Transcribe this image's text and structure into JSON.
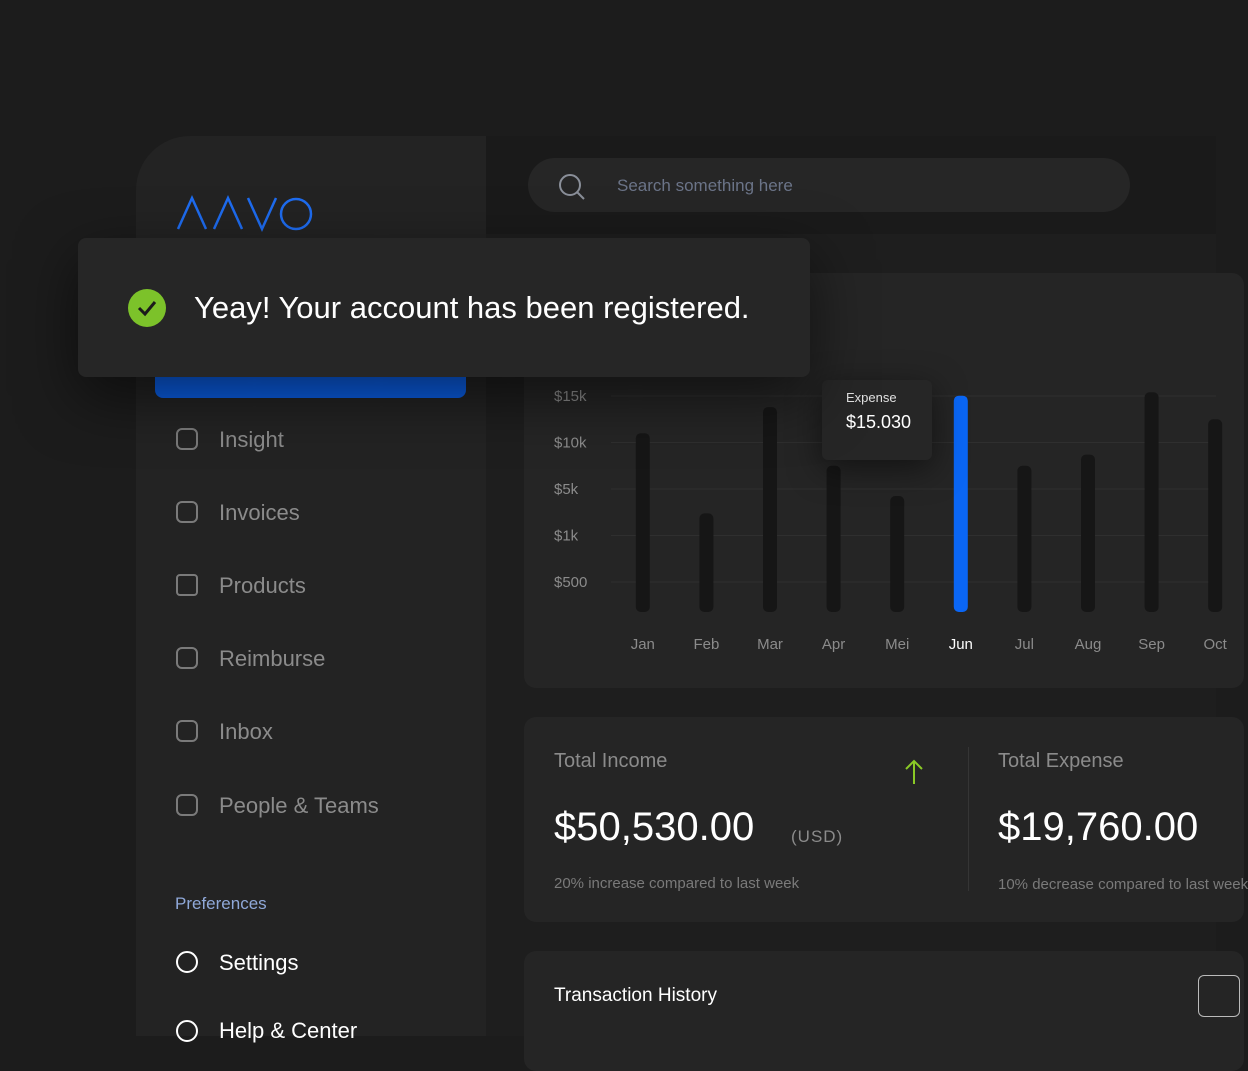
{
  "toast": {
    "message": "Yeay! Your account has been registered."
  },
  "search": {
    "placeholder": "Search something here"
  },
  "sidebar": {
    "menu": [
      "Insight",
      "Invoices",
      "Products",
      "Reimburse",
      "Inbox",
      "People & Teams"
    ],
    "section": "Preferences",
    "preferences": [
      "Settings",
      "Help & Center"
    ]
  },
  "chart_data": {
    "type": "bar",
    "categories": [
      "Jan",
      "Feb",
      "Mar",
      "Apr",
      "Mei",
      "Jun",
      "Jul",
      "Aug",
      "Sep",
      "Oct"
    ],
    "series": [
      {
        "name": "Expense",
        "color": "#161616",
        "values": [
          11000,
          2900,
          13800,
          7500,
          4400,
          15030,
          7500,
          8700,
          15400,
          12500
        ],
        "value_labels": [
          null,
          null,
          null,
          null,
          null,
          "$15.030",
          null,
          null,
          null,
          null
        ]
      }
    ],
    "highlight_color": "#0a66f5",
    "ylim": [
      0,
      16000
    ],
    "yticks": [
      {
        "value": 15000,
        "label": "$15k"
      },
      {
        "value": 10000,
        "label": "$10k"
      },
      {
        "value": 5000,
        "label": "$5k"
      },
      {
        "value": 1000,
        "label": "$1k"
      },
      {
        "value": 500,
        "label": "$500"
      }
    ],
    "grid": true
  },
  "summary": {
    "income": {
      "title": "Total Income",
      "amount": "$50,530.00",
      "currency": "(USD)",
      "note": "20% increase compared to last week"
    },
    "expense": {
      "title": "Total Expense",
      "amount": "$19,760.00",
      "note": "10% decrease compared to last week"
    }
  },
  "transactions": {
    "title": "Transaction History"
  }
}
